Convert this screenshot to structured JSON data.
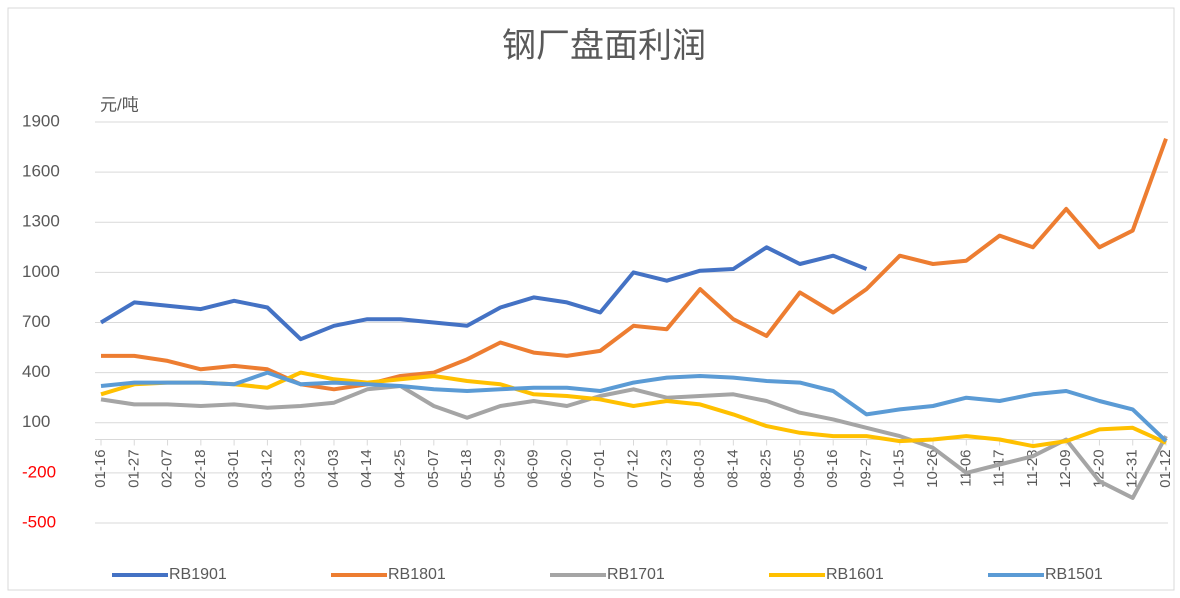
{
  "chart_data": {
    "type": "line",
    "title": "钢厂盘面利润",
    "y_unit": "元/吨",
    "categories": [
      "01-16",
      "01-27",
      "02-07",
      "02-18",
      "03-01",
      "03-12",
      "03-23",
      "04-03",
      "04-14",
      "04-25",
      "05-07",
      "05-18",
      "05-29",
      "06-09",
      "06-20",
      "07-01",
      "07-12",
      "07-23",
      "08-03",
      "08-14",
      "08-25",
      "09-05",
      "09-16",
      "09-27",
      "10-15",
      "10-26",
      "11-06",
      "11-17",
      "11-28",
      "12-09",
      "12-20",
      "12-31",
      "01-12"
    ],
    "series": [
      {
        "name": "RB1901",
        "color": "#4472c4",
        "values": [
          700,
          820,
          800,
          780,
          830,
          790,
          600,
          680,
          720,
          720,
          700,
          680,
          790,
          850,
          820,
          760,
          1000,
          950,
          1010,
          1020,
          1150,
          1050,
          1100,
          1020,
          null,
          null,
          null,
          null,
          null,
          null,
          null,
          null,
          null
        ]
      },
      {
        "name": "RB1801",
        "color": "#ed7d31",
        "values": [
          500,
          500,
          470,
          420,
          440,
          420,
          330,
          300,
          330,
          380,
          400,
          480,
          580,
          520,
          500,
          530,
          680,
          660,
          900,
          720,
          620,
          880,
          760,
          900,
          1100,
          1050,
          1070,
          1220,
          1150,
          1380,
          1150,
          1250,
          1800
        ]
      },
      {
        "name": "RB1701",
        "color": "#a5a5a5",
        "values": [
          240,
          210,
          210,
          200,
          210,
          190,
          200,
          220,
          300,
          320,
          200,
          130,
          200,
          230,
          200,
          260,
          300,
          250,
          260,
          270,
          230,
          160,
          120,
          70,
          20,
          -50,
          -200,
          -150,
          -100,
          0,
          -250,
          -350,
          20
        ]
      },
      {
        "name": "RB1601",
        "color": "#ffc000",
        "values": [
          270,
          330,
          340,
          340,
          330,
          310,
          400,
          360,
          340,
          360,
          380,
          350,
          330,
          270,
          260,
          240,
          200,
          230,
          210,
          150,
          80,
          40,
          20,
          20,
          -10,
          0,
          20,
          0,
          -40,
          -10,
          60,
          70,
          -20
        ]
      },
      {
        "name": "RB1501",
        "color": "#5b9bd5",
        "values": [
          320,
          340,
          340,
          340,
          330,
          400,
          330,
          340,
          330,
          320,
          300,
          290,
          300,
          310,
          310,
          290,
          340,
          370,
          380,
          370,
          350,
          340,
          290,
          150,
          180,
          200,
          250,
          230,
          270,
          290,
          230,
          180,
          -10
        ]
      }
    ],
    "ylim": [
      -500,
      1900
    ],
    "yticks": [
      -500,
      -200,
      100,
      400,
      700,
      1000,
      1300,
      1600,
      1900
    ],
    "grid": true,
    "negative_tick_color": "#ff0000",
    "legend": "bottom"
  }
}
